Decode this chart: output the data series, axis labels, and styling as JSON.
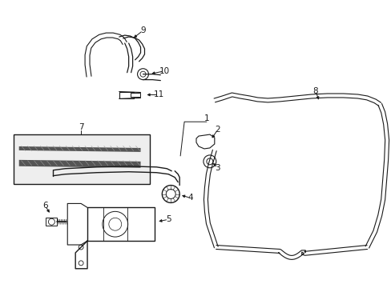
{
  "background_color": "#ffffff",
  "line_color": "#1a1a1a",
  "figure_width": 4.89,
  "figure_height": 3.6,
  "dpi": 100,
  "font_size": 7.5
}
